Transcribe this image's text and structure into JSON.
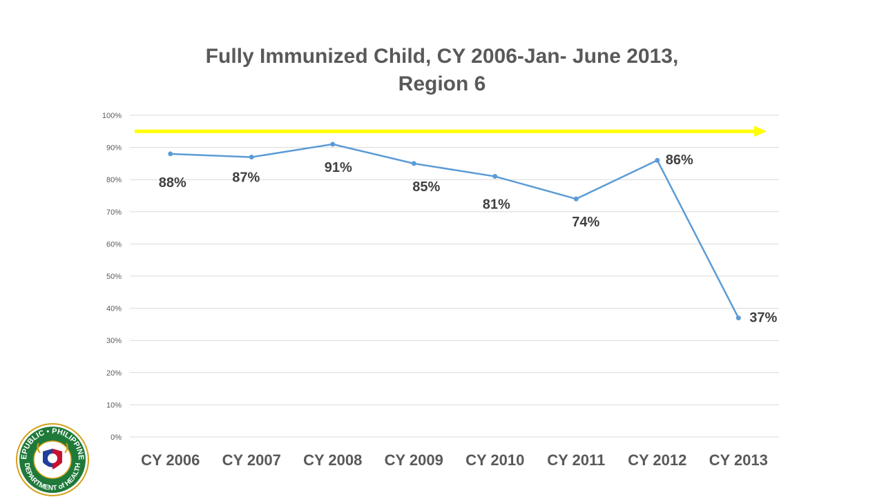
{
  "chart_data": {
    "type": "line",
    "title_line1": "Fully Immunized Child, CY 2006-Jan- June 2013,",
    "title_line2": "Region 6",
    "categories": [
      "CY 2006",
      "CY 2007",
      "CY 2008",
      "CY 2009",
      "CY 2010",
      "CY 2011",
      "CY 2012",
      "CY 2013"
    ],
    "series": [
      {
        "values": [
          88,
          87,
          91,
          85,
          81,
          74,
          86,
          37
        ],
        "labels": [
          "88%",
          "87%",
          "91%",
          "85%",
          "81%",
          "74%",
          "86%",
          "37%"
        ],
        "color": "#5b9bd5"
      }
    ],
    "ylim": [
      0,
      100
    ],
    "yticks": [
      0,
      10,
      20,
      30,
      40,
      50,
      60,
      70,
      80,
      90,
      100
    ],
    "ytick_labels": [
      "0%",
      "10%",
      "20%",
      "30%",
      "40%",
      "50%",
      "60%",
      "70%",
      "80%",
      "90%",
      "100%"
    ],
    "grid": true,
    "target_arrow": {
      "value": 95,
      "color": "#ffff00"
    }
  },
  "logo": {
    "top_text": "REPUBLIC • PHILIPPINES",
    "bottom_text": "DEPARTMENT of HEALTH",
    "colors": {
      "ring": "#1f7a3a",
      "inner": "#ffffff",
      "accent_red": "#c8102e",
      "accent_blue": "#1f3f99",
      "gold": "#d4a017"
    }
  }
}
